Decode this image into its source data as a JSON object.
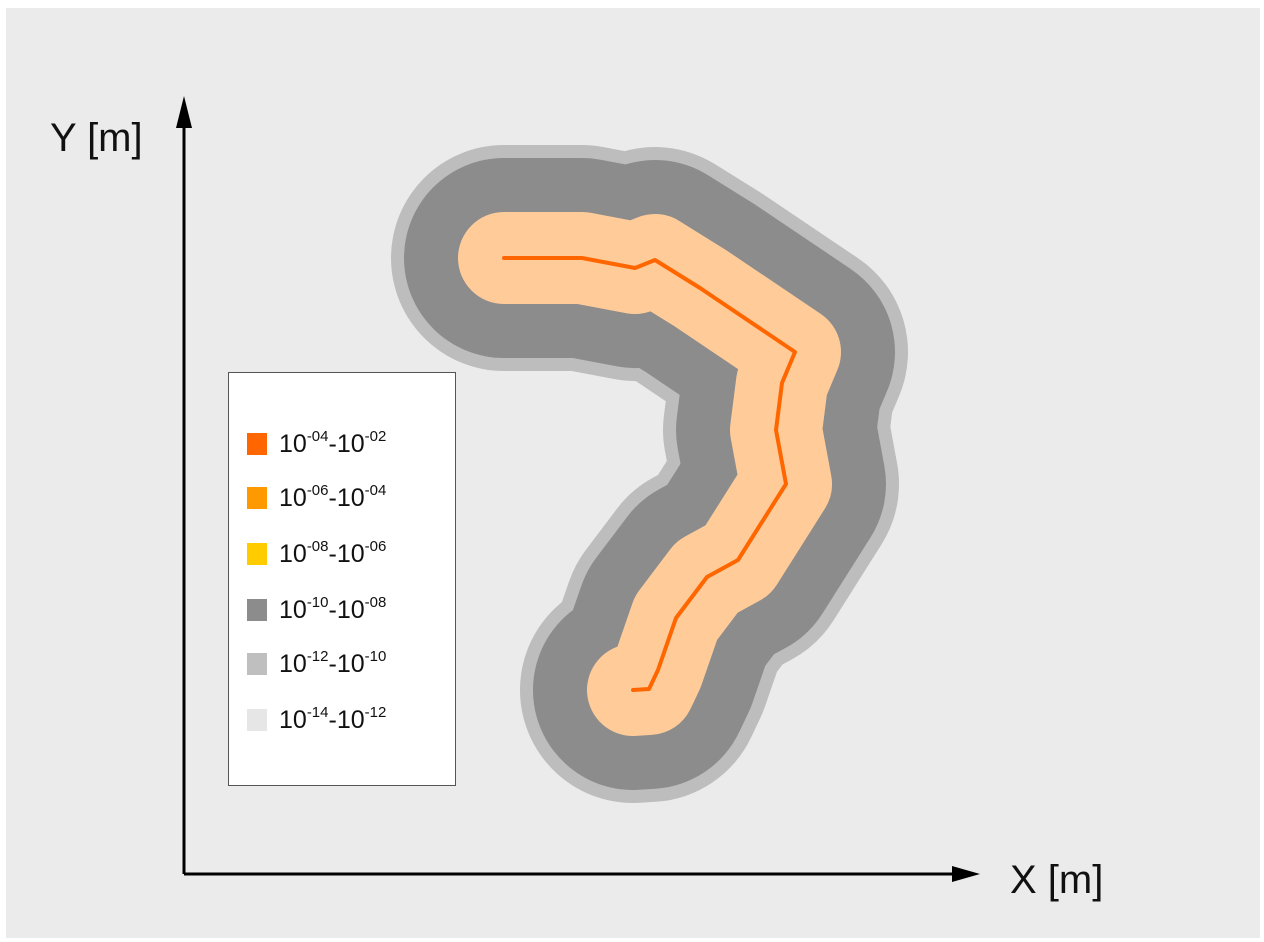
{
  "chart_data": {
    "type": "heatmap",
    "xlabel": "X [m]",
    "ylabel": "Y [m]",
    "legend_position": "left",
    "legend": [
      {
        "base": "10",
        "exp_low": "-04",
        "sep": "-",
        "base2": "10",
        "exp_high": "-02",
        "color": "#ff6600"
      },
      {
        "base": "10",
        "exp_low": "-06",
        "sep": "-",
        "base2": "10",
        "exp_high": "-04",
        "color": "#ff9900"
      },
      {
        "base": "10",
        "exp_low": "-08",
        "sep": "-",
        "base2": "10",
        "exp_high": "-06",
        "color": "#ffcc00"
      },
      {
        "base": "10",
        "exp_low": "-10",
        "sep": "-",
        "base2": "10",
        "exp_high": "-08",
        "color": "#8c8c8c"
      },
      {
        "base": "10",
        "exp_low": "-12",
        "sep": "-",
        "base2": "10",
        "exp_high": "-10",
        "color": "#bfbfbf"
      },
      {
        "base": "10",
        "exp_low": "-14",
        "sep": "-",
        "base2": "10",
        "exp_high": "-12",
        "color": "#e6e6e6"
      }
    ],
    "colors": {
      "background": "#ebebeb",
      "band_outer": "#bdbdbd",
      "band_mid": "#8c8c8c",
      "band_inner": "#ffcc99",
      "trajectory": "#ff6600"
    }
  }
}
